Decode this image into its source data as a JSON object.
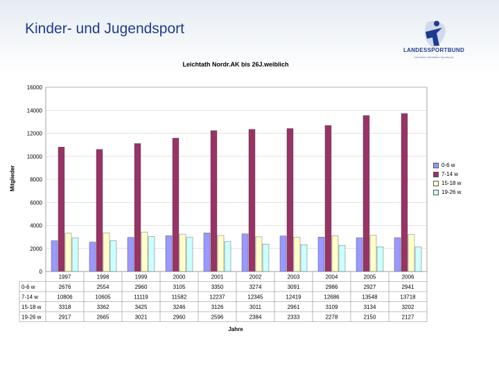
{
  "slide_title": "Kinder- und Jugendsport",
  "logo": {
    "name": "LANDESSPORTBUND",
    "subtitle": "Nordrhein-Westfalen Sportbund"
  },
  "colors": {
    "series": [
      "#9999ff",
      "#993366",
      "#ffffcc",
      "#ccffff"
    ],
    "plot_bg": "#ffffff",
    "title": "#1f3b8f"
  },
  "chart_data": {
    "type": "bar",
    "title": "Leichtath Nordr.AK bis 26J.weiblich",
    "xlabel": "Jahre",
    "ylabel": "Mitglieder",
    "ylim": [
      0,
      16000
    ],
    "yticks": [
      "0",
      "2000",
      "4000",
      "6000",
      "8000",
      "10000",
      "12000",
      "14000",
      "16000"
    ],
    "legend_position": "right",
    "categories": [
      "1997",
      "1998",
      "1999",
      "2000",
      "2001",
      "2002",
      "2003",
      "2004",
      "2005",
      "2006"
    ],
    "series": [
      {
        "name": "0-6 w",
        "values": [
          2676,
          2554,
          2960,
          3105,
          3350,
          3274,
          3091,
          2986,
          2927,
          2941
        ]
      },
      {
        "name": "7-14 w",
        "values": [
          10806,
          10605,
          11119,
          11582,
          12237,
          12345,
          12419,
          12686,
          13548,
          13718
        ]
      },
      {
        "name": "15-18 w",
        "values": [
          3318,
          3362,
          3425,
          3246,
          3126,
          3011,
          2961,
          3109,
          3134,
          3202
        ]
      },
      {
        "name": "19-26 w",
        "values": [
          2917,
          2665,
          3021,
          2960,
          2596,
          2384,
          2333,
          2278,
          2150,
          2127
        ]
      }
    ]
  }
}
